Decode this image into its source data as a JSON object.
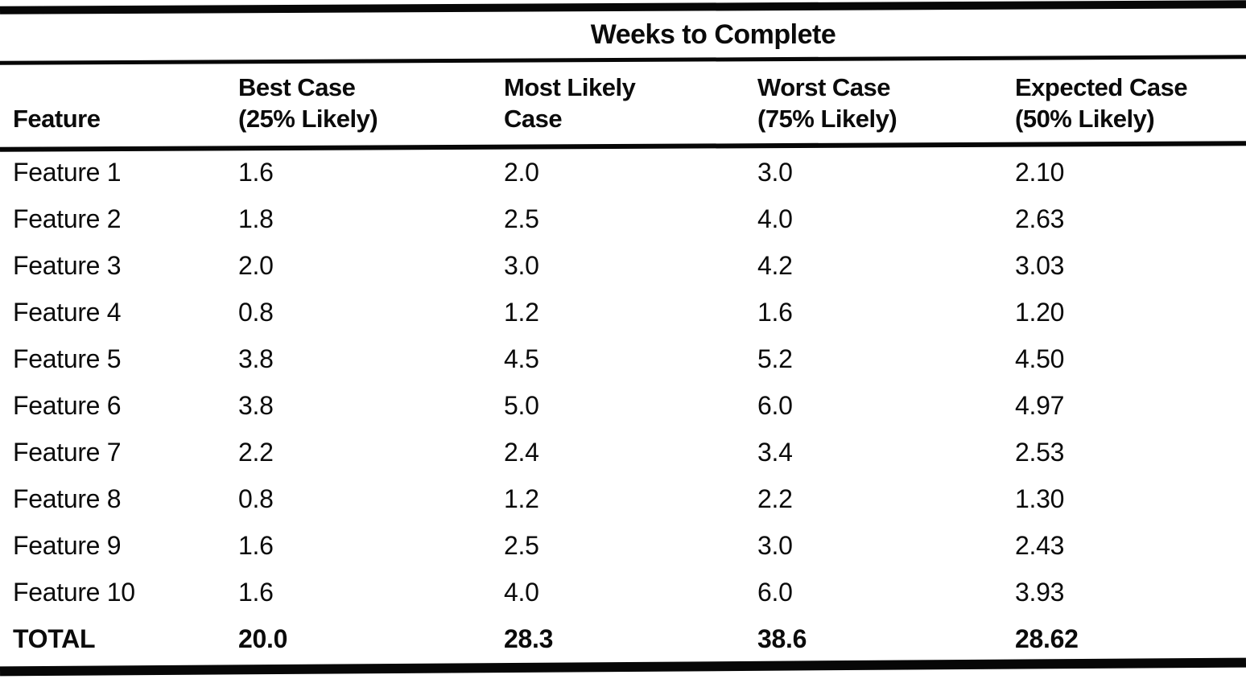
{
  "table": {
    "title": "Weeks to Complete",
    "header": {
      "feature": "Feature",
      "cols": [
        {
          "line1": "Best Case",
          "line2": "(25% Likely)"
        },
        {
          "line1": "Most Likely",
          "line2": "Case"
        },
        {
          "line1": "Worst Case",
          "line2": "(75% Likely)"
        },
        {
          "line1": "Expected Case",
          "line2": "(50% Likely)"
        }
      ]
    },
    "rows": [
      {
        "feature": "Feature 1",
        "best": "1.6",
        "likely": "2.0",
        "worst": "3.0",
        "expected": "2.10"
      },
      {
        "feature": "Feature 2",
        "best": "1.8",
        "likely": "2.5",
        "worst": "4.0",
        "expected": "2.63"
      },
      {
        "feature": "Feature 3",
        "best": "2.0",
        "likely": "3.0",
        "worst": "4.2",
        "expected": "3.03"
      },
      {
        "feature": "Feature 4",
        "best": "0.8",
        "likely": "1.2",
        "worst": "1.6",
        "expected": "1.20"
      },
      {
        "feature": "Feature 5",
        "best": "3.8",
        "likely": "4.5",
        "worst": "5.2",
        "expected": "4.50"
      },
      {
        "feature": "Feature 6",
        "best": "3.8",
        "likely": "5.0",
        "worst": "6.0",
        "expected": "4.97"
      },
      {
        "feature": "Feature 7",
        "best": "2.2",
        "likely": "2.4",
        "worst": "3.4",
        "expected": "2.53"
      },
      {
        "feature": "Feature 8",
        "best": "0.8",
        "likely": "1.2",
        "worst": "2.2",
        "expected": "1.30"
      },
      {
        "feature": "Feature 9",
        "best": "1.6",
        "likely": "2.5",
        "worst": "3.0",
        "expected": "2.43"
      },
      {
        "feature": "Feature 10",
        "best": "1.6",
        "likely": "4.0",
        "worst": "6.0",
        "expected": "3.93"
      }
    ],
    "total": {
      "feature": "TOTAL",
      "best": "20.0",
      "likely": "28.3",
      "worst": "38.6",
      "expected": "28.62"
    },
    "ink_color": "#070707",
    "paper_color": "#ffffff"
  }
}
